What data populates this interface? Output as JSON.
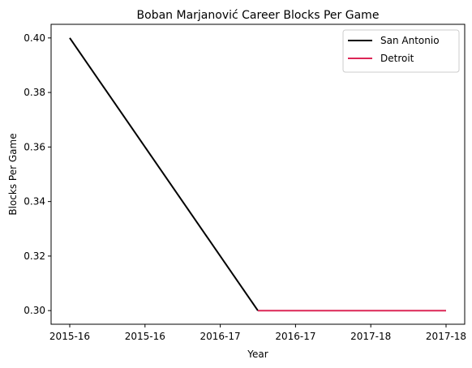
{
  "chart_data": {
    "type": "line",
    "title": "Boban Marjanović Career Blocks Per Game",
    "xlabel": "Year",
    "ylabel": "Blocks Per Game",
    "xlim": [
      0,
      2
    ],
    "ylim": [
      0.295,
      0.405
    ],
    "x_tick_labels": [
      "2015-16",
      "2015-16",
      "2016-17",
      "2016-17",
      "2017-18",
      "2017-18"
    ],
    "y_ticks": [
      0.3,
      0.32,
      0.34,
      0.36,
      0.38,
      0.4
    ],
    "y_tick_labels": [
      "0.30",
      "0.32",
      "0.34",
      "0.36",
      "0.38",
      "0.40"
    ],
    "legend_position": "upper right",
    "grid": false,
    "series": [
      {
        "name": "San Antonio",
        "color": "#000000",
        "x": [
          0,
          1
        ],
        "y": [
          0.4,
          0.3
        ]
      },
      {
        "name": "Detroit",
        "color": "#dc2656",
        "x": [
          1,
          2
        ],
        "y": [
          0.3,
          0.3
        ]
      }
    ]
  }
}
